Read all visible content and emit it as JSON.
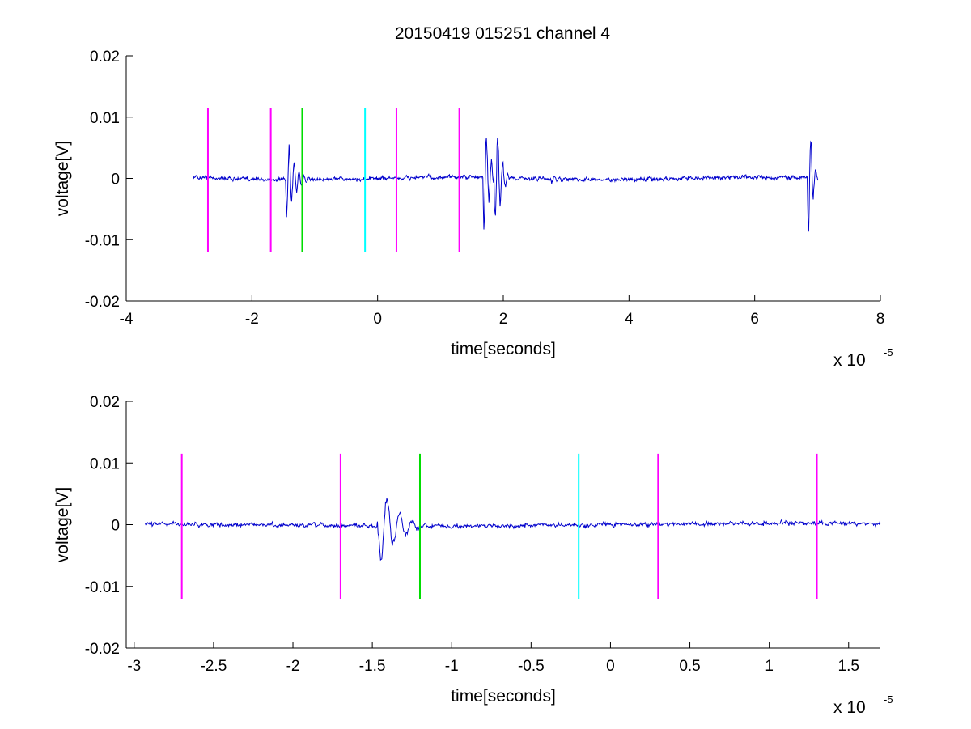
{
  "figure": {
    "title": "20150419 015251 channel 4"
  },
  "chart_data": [
    {
      "type": "line",
      "title": "20150419 015251 channel 4",
      "xlabel": "time[seconds]",
      "ylabel": "voltage[V]",
      "x_multiplier_base": "x 10",
      "x_multiplier_exp": "-5",
      "xlim": [
        -4,
        8
      ],
      "ylim": [
        -0.02,
        0.02
      ],
      "xticks": [
        -4,
        -2,
        0,
        2,
        4,
        6,
        8
      ],
      "xtick_labels": [
        "-4",
        "-2",
        "0",
        "2",
        "4",
        "6",
        "8"
      ],
      "yticks": [
        -0.02,
        -0.01,
        0,
        0.01,
        0.02
      ],
      "ytick_labels": [
        "-0.02",
        "-0.01",
        "0",
        "0.01",
        "0.02"
      ],
      "grid": false,
      "signal": {
        "color": "#0000cc",
        "x_range": [
          -2.93,
          7.02
        ],
        "bursts": [
          {
            "t": -1.42,
            "amp": 0.0065,
            "dur": 0.35
          },
          {
            "t": 1.72,
            "amp": 0.0095,
            "dur": 0.22
          },
          {
            "t": 1.9,
            "amp": 0.0105,
            "dur": 0.2
          },
          {
            "t": 2.8,
            "amp": 0.0008,
            "dur": 0.3
          },
          {
            "t": 6.88,
            "amp": 0.011,
            "dur": 0.14
          }
        ]
      },
      "markers": [
        {
          "x": -2.7,
          "color": "#ff00ff",
          "y_range": [
            -0.012,
            0.0115
          ]
        },
        {
          "x": -1.7,
          "color": "#ff00ff",
          "y_range": [
            -0.012,
            0.0115
          ]
        },
        {
          "x": -1.2,
          "color": "#00dd00",
          "y_range": [
            -0.012,
            0.0115
          ]
        },
        {
          "x": -0.2,
          "color": "#00ffff",
          "y_range": [
            -0.012,
            0.0115
          ]
        },
        {
          "x": 0.3,
          "color": "#ff00ff",
          "y_range": [
            -0.012,
            0.0115
          ]
        },
        {
          "x": 1.3,
          "color": "#ff00ff",
          "y_range": [
            -0.012,
            0.0115
          ]
        }
      ]
    },
    {
      "type": "line",
      "title": "",
      "xlabel": "time[seconds]",
      "ylabel": "voltage[V]",
      "x_multiplier_base": "x 10",
      "x_multiplier_exp": "-5",
      "xlim": [
        -3.05,
        1.7
      ],
      "ylim": [
        -0.02,
        0.02
      ],
      "xticks": [
        -3,
        -2.5,
        -2,
        -1.5,
        -1,
        -0.5,
        0,
        0.5,
        1,
        1.5
      ],
      "xtick_labels": [
        "-3",
        "-2.5",
        "-2",
        "-1.5",
        "-1",
        "-0.5",
        "0",
        "0.5",
        "1",
        "1.5"
      ],
      "yticks": [
        -0.02,
        -0.01,
        0,
        0.01,
        0.02
      ],
      "ytick_labels": [
        "-0.02",
        "-0.01",
        "0",
        "0.01",
        "0.02"
      ],
      "grid": false,
      "signal": {
        "color": "#0000cc",
        "x_range": [
          -2.93,
          1.7
        ],
        "bursts": [
          {
            "t": -1.42,
            "amp": 0.0062,
            "dur": 0.28
          }
        ]
      },
      "markers": [
        {
          "x": -2.7,
          "color": "#ff00ff",
          "y_range": [
            -0.012,
            0.0115
          ]
        },
        {
          "x": -1.7,
          "color": "#ff00ff",
          "y_range": [
            -0.012,
            0.0115
          ]
        },
        {
          "x": -1.2,
          "color": "#00dd00",
          "y_range": [
            -0.012,
            0.0115
          ]
        },
        {
          "x": -0.2,
          "color": "#00ffff",
          "y_range": [
            -0.012,
            0.0115
          ]
        },
        {
          "x": 0.3,
          "color": "#ff00ff",
          "y_range": [
            -0.012,
            0.0115
          ]
        },
        {
          "x": 1.3,
          "color": "#ff00ff",
          "y_range": [
            -0.012,
            0.0115
          ]
        }
      ]
    }
  ]
}
